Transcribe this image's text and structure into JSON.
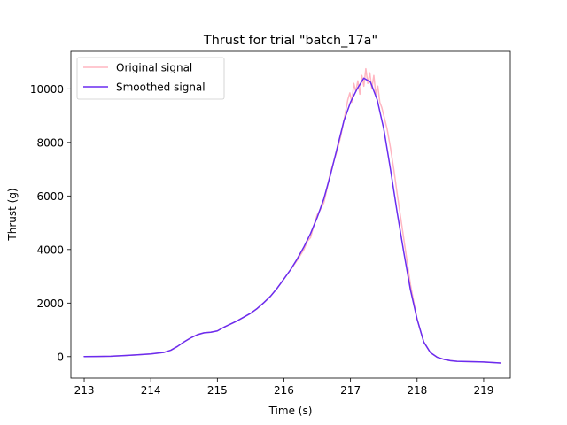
{
  "chart_data": {
    "type": "line",
    "title": "Thrust for trial \"batch_17a\"",
    "xlabel": "Time (s)",
    "ylabel": "Thrust (g)",
    "xlim": [
      212.8,
      219.4
    ],
    "ylim": [
      -800,
      11400
    ],
    "xticks": [
      213,
      214,
      215,
      216,
      217,
      218,
      219
    ],
    "xtick_labels": [
      "213",
      "214",
      "215",
      "216",
      "217",
      "218",
      "219"
    ],
    "yticks": [
      0,
      2000,
      4000,
      6000,
      8000,
      10000
    ],
    "ytick_labels": [
      "0",
      "2000",
      "4000",
      "6000",
      "8000",
      "10000"
    ],
    "grid": false,
    "legend_position": "upper left",
    "series": [
      {
        "name": "Original signal",
        "color": "#ffb6c1",
        "x": [
          213.0,
          213.2,
          213.4,
          213.6,
          213.8,
          214.0,
          214.2,
          214.3,
          214.4,
          214.5,
          214.6,
          214.7,
          214.8,
          214.9,
          215.0,
          215.1,
          215.2,
          215.3,
          215.4,
          215.5,
          215.6,
          215.7,
          215.8,
          215.9,
          216.0,
          216.1,
          216.2,
          216.3,
          216.35,
          216.4,
          216.45,
          216.5,
          216.55,
          216.6,
          216.65,
          216.7,
          216.75,
          216.8,
          216.85,
          216.9,
          216.93,
          216.96,
          216.99,
          217.02,
          217.05,
          217.08,
          217.11,
          217.14,
          217.17,
          217.2,
          217.23,
          217.26,
          217.29,
          217.32,
          217.35,
          217.38,
          217.41,
          217.44,
          217.47,
          217.5,
          217.55,
          217.6,
          217.65,
          217.7,
          217.8,
          217.9,
          218.0,
          218.1,
          218.2,
          218.3,
          218.4,
          218.5,
          218.6,
          218.8,
          219.0,
          219.25
        ],
        "y": [
          0,
          5,
          15,
          40,
          70,
          100,
          160,
          240,
          380,
          550,
          700,
          820,
          890,
          910,
          960,
          1100,
          1220,
          1340,
          1480,
          1620,
          1800,
          2020,
          2260,
          2560,
          2900,
          3250,
          3600,
          4000,
          4300,
          4450,
          4900,
          5300,
          5500,
          5750,
          6300,
          6900,
          7300,
          7700,
          8200,
          8800,
          9200,
          9600,
          9850,
          9500,
          10200,
          9900,
          10300,
          9800,
          10500,
          10100,
          10750,
          10200,
          10600,
          10000,
          10500,
          9800,
          10100,
          9500,
          9300,
          9000,
          8500,
          7800,
          7000,
          6100,
          4400,
          2700,
          1400,
          550,
          150,
          -20,
          -100,
          -150,
          -175,
          -190,
          -200,
          -240
        ]
      },
      {
        "name": "Smoothed signal",
        "color": "#6a2cf0",
        "x": [
          213.0,
          213.2,
          213.4,
          213.6,
          213.8,
          214.0,
          214.2,
          214.3,
          214.4,
          214.5,
          214.6,
          214.7,
          214.8,
          214.9,
          215.0,
          215.1,
          215.2,
          215.3,
          215.4,
          215.5,
          215.6,
          215.7,
          215.8,
          215.9,
          216.0,
          216.1,
          216.2,
          216.3,
          216.4,
          216.5,
          216.6,
          216.7,
          216.8,
          216.9,
          217.0,
          217.1,
          217.2,
          217.3,
          217.4,
          217.5,
          217.6,
          217.7,
          217.8,
          217.9,
          218.0,
          218.1,
          218.2,
          218.3,
          218.4,
          218.5,
          218.6,
          218.8,
          219.0,
          219.25
        ],
        "y": [
          0,
          5,
          15,
          40,
          70,
          100,
          160,
          240,
          380,
          550,
          700,
          820,
          890,
          910,
          960,
          1100,
          1220,
          1340,
          1480,
          1620,
          1800,
          2020,
          2260,
          2560,
          2900,
          3250,
          3650,
          4100,
          4600,
          5200,
          5900,
          6800,
          7800,
          8800,
          9500,
          10000,
          10400,
          10250,
          9600,
          8500,
          7000,
          5400,
          3900,
          2500,
          1400,
          550,
          150,
          -20,
          -100,
          -150,
          -175,
          -190,
          -200,
          -240
        ]
      }
    ]
  }
}
